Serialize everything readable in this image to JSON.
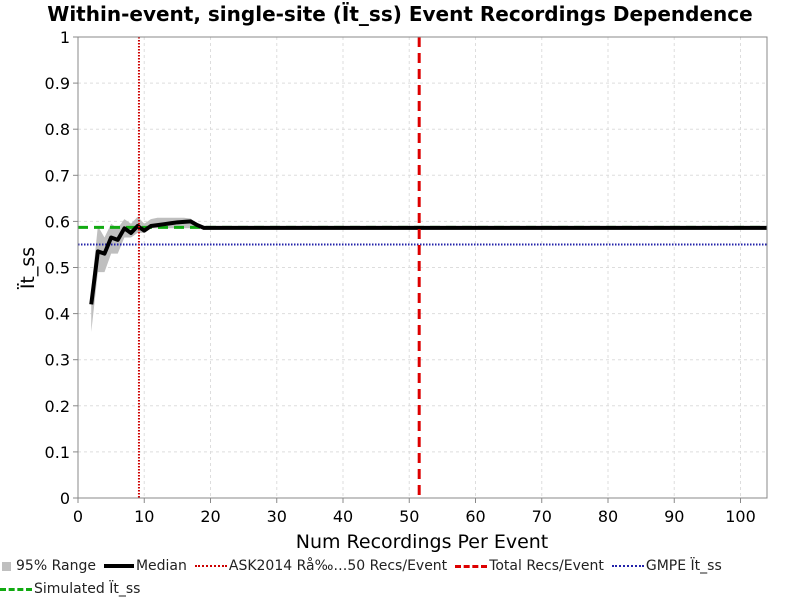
{
  "chart_data": {
    "type": "line",
    "title": "Within-event, single-site (Ït_ss) Event Recordings Dependence",
    "xlabel": "Num Recordings Per Event",
    "ylabel": "Ït_ss",
    "xlim": [
      0,
      104
    ],
    "ylim": [
      0,
      1
    ],
    "x_ticks": [
      "0",
      "10",
      "20",
      "30",
      "40",
      "50",
      "60",
      "70",
      "80",
      "90",
      "100"
    ],
    "y_ticks": [
      "0",
      "0.1",
      "0.2",
      "0.3",
      "0.4",
      "0.5",
      "0.6",
      "0.7",
      "0.8",
      "0.9",
      "1"
    ],
    "grid": true,
    "legend_placement": "bottom",
    "series": [
      {
        "name": "95% Range",
        "kind": "band",
        "color": "#bfbfbf",
        "x": [
          2,
          3,
          4,
          5,
          6,
          7,
          8,
          9,
          10,
          11,
          12,
          13,
          14,
          15,
          16,
          17,
          18,
          19,
          104
        ],
        "lower": [
          0.36,
          0.49,
          0.49,
          0.53,
          0.53,
          0.565,
          0.565,
          0.575,
          0.575,
          0.585,
          0.585,
          0.585,
          0.585,
          0.585,
          0.585,
          0.585,
          0.585,
          0.585,
          0.585
        ],
        "upper": [
          0.45,
          0.59,
          0.565,
          0.595,
          0.585,
          0.605,
          0.595,
          0.61,
          0.595,
          0.605,
          0.608,
          0.608,
          0.608,
          0.608,
          0.608,
          0.606,
          0.595,
          0.59,
          0.59
        ]
      },
      {
        "name": "Median",
        "kind": "line",
        "color": "#000000",
        "x": [
          2,
          3,
          4,
          5,
          6,
          7,
          8,
          9,
          10,
          11,
          12,
          13,
          14,
          15,
          16,
          17,
          18,
          19,
          104
        ],
        "y": [
          0.42,
          0.535,
          0.53,
          0.565,
          0.56,
          0.585,
          0.575,
          0.59,
          0.58,
          0.59,
          0.592,
          0.594,
          0.596,
          0.598,
          0.599,
          0.6,
          0.592,
          0.586,
          0.586
        ]
      },
      {
        "name": "ASK2014 Rå‰…50 Recs/Event",
        "kind": "vline",
        "x": 9.2,
        "color": "#cc0000",
        "style": "dotted"
      },
      {
        "name": "Total Recs/Event",
        "kind": "vline",
        "x": 51.5,
        "color": "#dd0000",
        "style": "dashed"
      },
      {
        "name": "GMPE Ït_ss",
        "kind": "hline",
        "y": 0.55,
        "color": "#2222aa",
        "style": "dotted"
      },
      {
        "name": "Simulated Ït_ss",
        "kind": "hline",
        "y": 0.587,
        "color": "#11aa11",
        "style": "dashed"
      }
    ]
  }
}
